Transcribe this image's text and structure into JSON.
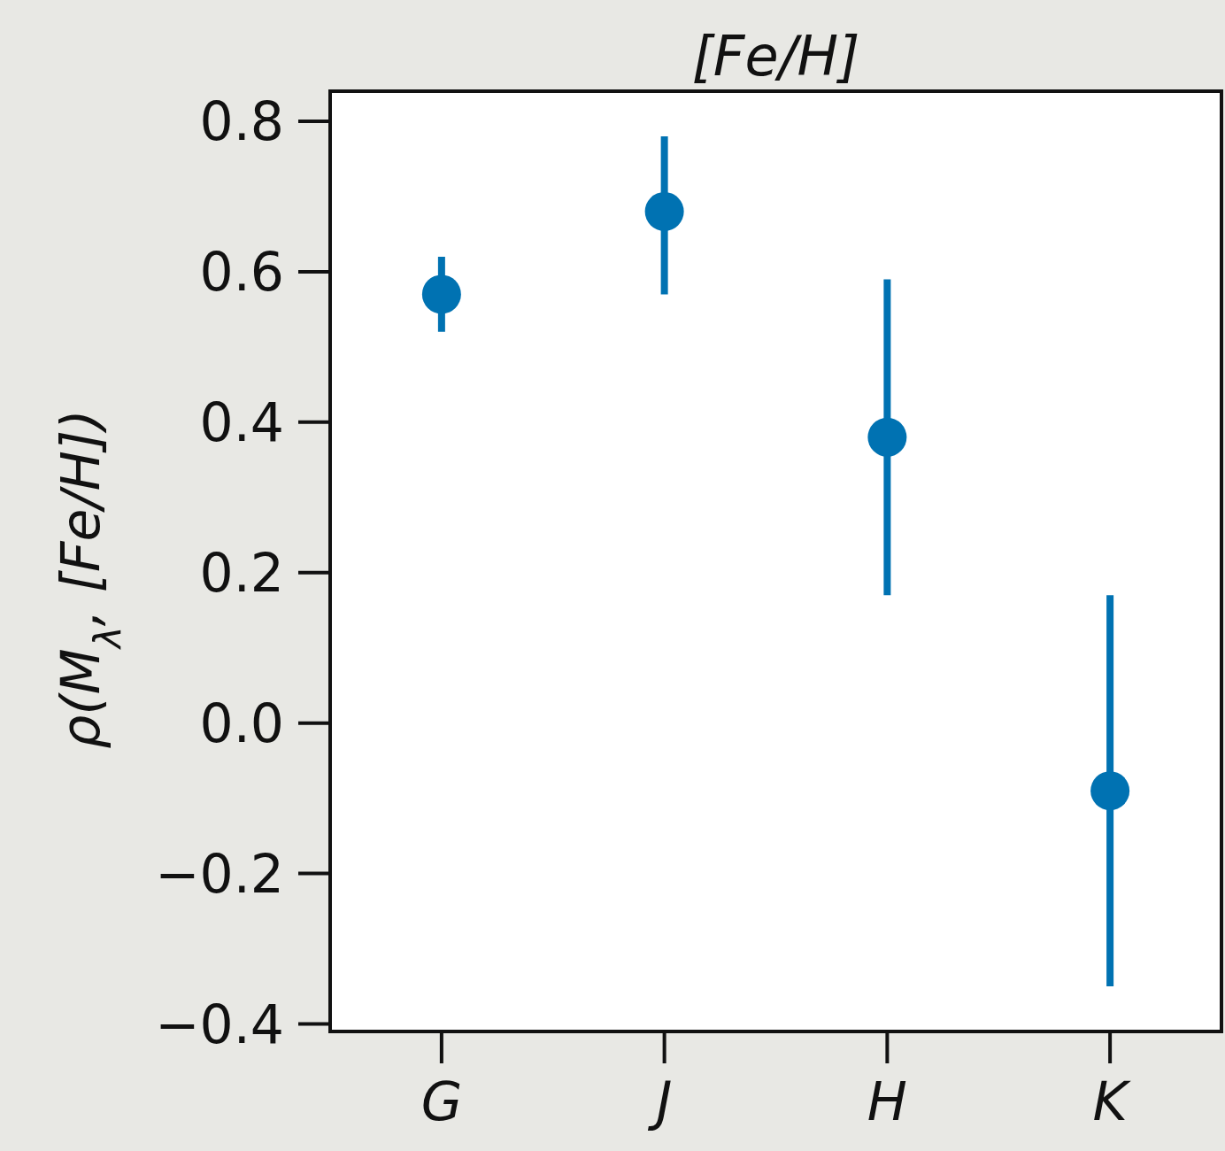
{
  "chart_data": {
    "type": "scatter",
    "title": "[Fe/H]",
    "ylabel": "ρ(M$_{λ}$,  [Fe/H])",
    "categories": [
      "G",
      "J",
      "H",
      "K"
    ],
    "values": [
      0.57,
      0.68,
      0.38,
      -0.09
    ],
    "errors": [
      [
        0.52,
        0.62
      ],
      [
        0.57,
        0.78
      ],
      [
        0.17,
        0.59
      ],
      [
        -0.35,
        0.17
      ]
    ],
    "color": "#0072b2",
    "marker": "circle",
    "ylim": [
      -0.41,
      0.84
    ],
    "yticks": [
      {
        "value": -0.4,
        "label": "−0.4"
      },
      {
        "value": -0.2,
        "label": "−0.2"
      },
      {
        "value": 0,
        "label": "0.0"
      },
      {
        "value": 0.2,
        "label": "0.2"
      },
      {
        "value": 0.4,
        "label": "0.4"
      },
      {
        "value": 0.6,
        "label": "0.6"
      },
      {
        "value": 0.8,
        "label": "0.8"
      }
    ],
    "grid": false
  }
}
